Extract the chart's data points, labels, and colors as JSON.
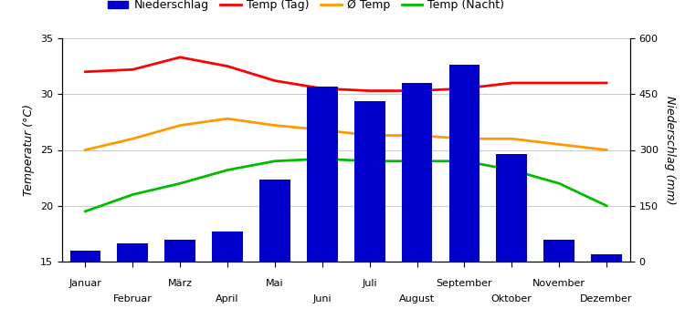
{
  "months": [
    "Januar",
    "Februar",
    "März",
    "April",
    "Mai",
    "Juni",
    "Juli",
    "August",
    "September",
    "Oktober",
    "November",
    "Dezember"
  ],
  "niederschlag_mm": [
    30,
    50,
    60,
    80,
    220,
    470,
    430,
    480,
    530,
    290,
    60,
    20
  ],
  "temp_tag": [
    32.0,
    32.2,
    33.3,
    32.5,
    31.2,
    30.5,
    30.3,
    30.3,
    30.5,
    31.0,
    31.0,
    31.0
  ],
  "temp_avg": [
    25.0,
    26.0,
    27.2,
    27.8,
    27.2,
    26.8,
    26.3,
    26.3,
    26.0,
    26.0,
    25.5,
    25.0
  ],
  "temp_nacht": [
    19.5,
    21.0,
    22.0,
    23.2,
    24.0,
    24.2,
    24.0,
    24.0,
    24.0,
    23.2,
    22.0,
    20.0
  ],
  "bar_color": "#0000cc",
  "temp_tag_color": "#ff0000",
  "temp_avg_color": "#ff9900",
  "temp_nacht_color": "#00bb00",
  "ylabel_left": "Temperatur (°C)",
  "ylabel_right": "Niederschlag (mm)",
  "ylim_left": [
    15,
    35
  ],
  "ylim_right": [
    0,
    600
  ],
  "yticks_left": [
    15,
    20,
    25,
    30,
    35
  ],
  "yticks_right": [
    0,
    150,
    300,
    450,
    600
  ],
  "legend_labels": [
    "Niederschlag",
    "Temp (Tag)",
    "Ø Temp",
    "Temp (Nacht)"
  ],
  "background_color": "#ffffff",
  "grid_color": "#cccccc"
}
